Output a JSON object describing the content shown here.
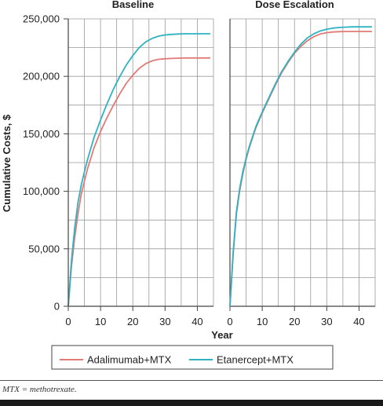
{
  "chart_data": {
    "type": "line",
    "ylabel": "Cumulative Costs, $",
    "xlabel": "Year",
    "ylim": [
      0,
      250000
    ],
    "xlim": [
      0,
      45
    ],
    "y_ticks": [
      "0",
      "50,000",
      "100,000",
      "150,000",
      "200,000",
      "250,000"
    ],
    "x_ticks": [
      "0",
      "10",
      "20",
      "30",
      "40"
    ],
    "grid": true,
    "legend_position": "bottom",
    "panels": [
      {
        "title": "Baseline",
        "series": [
          {
            "name": "Adalimumab+MTX",
            "color": "#e07b77",
            "x": [
              0,
              1,
              2,
              3,
              4,
              5,
              6,
              8,
              10,
              12,
              14,
              16,
              18,
              20,
              22,
              24,
              26,
              28,
              30,
              32,
              34,
              36,
              38,
              40,
              42,
              44
            ],
            "y": [
              0,
              35000,
              60000,
              80000,
              97000,
              109000,
              120000,
              138000,
              152000,
              164000,
              175000,
              185000,
              194000,
              201000,
              207000,
              211000,
              213500,
              214800,
              215300,
              215600,
              215800,
              215900,
              216000,
              216000,
              216000,
              216000
            ]
          },
          {
            "name": "Etanercept+MTX",
            "color": "#2fb3c2",
            "x": [
              0,
              1,
              2,
              3,
              4,
              5,
              6,
              8,
              10,
              12,
              14,
              16,
              18,
              20,
              22,
              24,
              26,
              28,
              30,
              32,
              34,
              36,
              38,
              40,
              42,
              44
            ],
            "y": [
              0,
              40000,
              68000,
              90000,
              105000,
              117000,
              128000,
              147000,
              162000,
              176000,
              189000,
              200000,
              210000,
              218000,
              225000,
              230000,
              233000,
              235000,
              236000,
              236500,
              236800,
              237000,
              237000,
              237000,
              237000,
              237000
            ]
          }
        ]
      },
      {
        "title": "Dose Escalation",
        "series": [
          {
            "name": "Adalimumab+MTX",
            "color": "#e07b77",
            "x": [
              0,
              1,
              2,
              3,
              4,
              5,
              6,
              8,
              10,
              12,
              14,
              16,
              18,
              20,
              22,
              24,
              26,
              28,
              30,
              32,
              34,
              36,
              38,
              40,
              42,
              44
            ],
            "y": [
              0,
              45000,
              80000,
              100000,
              115000,
              128000,
              138000,
              155000,
              168000,
              180000,
              192000,
              203000,
              212000,
              220000,
              226000,
              231000,
              234500,
              236800,
              238000,
              238600,
              238900,
              239000,
              239000,
              239000,
              239000,
              239000
            ]
          },
          {
            "name": "Etanercept+MTX",
            "color": "#2fb3c2",
            "x": [
              0,
              1,
              2,
              3,
              4,
              5,
              6,
              8,
              10,
              12,
              14,
              16,
              18,
              20,
              22,
              24,
              26,
              28,
              30,
              32,
              34,
              36,
              38,
              40,
              42,
              44
            ],
            "y": [
              0,
              47000,
              82000,
              102000,
              117000,
              129000,
              139000,
              156000,
              169000,
              181000,
              193000,
              204000,
              213000,
              221000,
              228000,
              233500,
              237000,
              239500,
              241000,
              242000,
              242500,
              242800,
              243000,
              243000,
              243000,
              243000
            ]
          }
        ]
      }
    ]
  },
  "footnote": "MTX = methotrexate."
}
